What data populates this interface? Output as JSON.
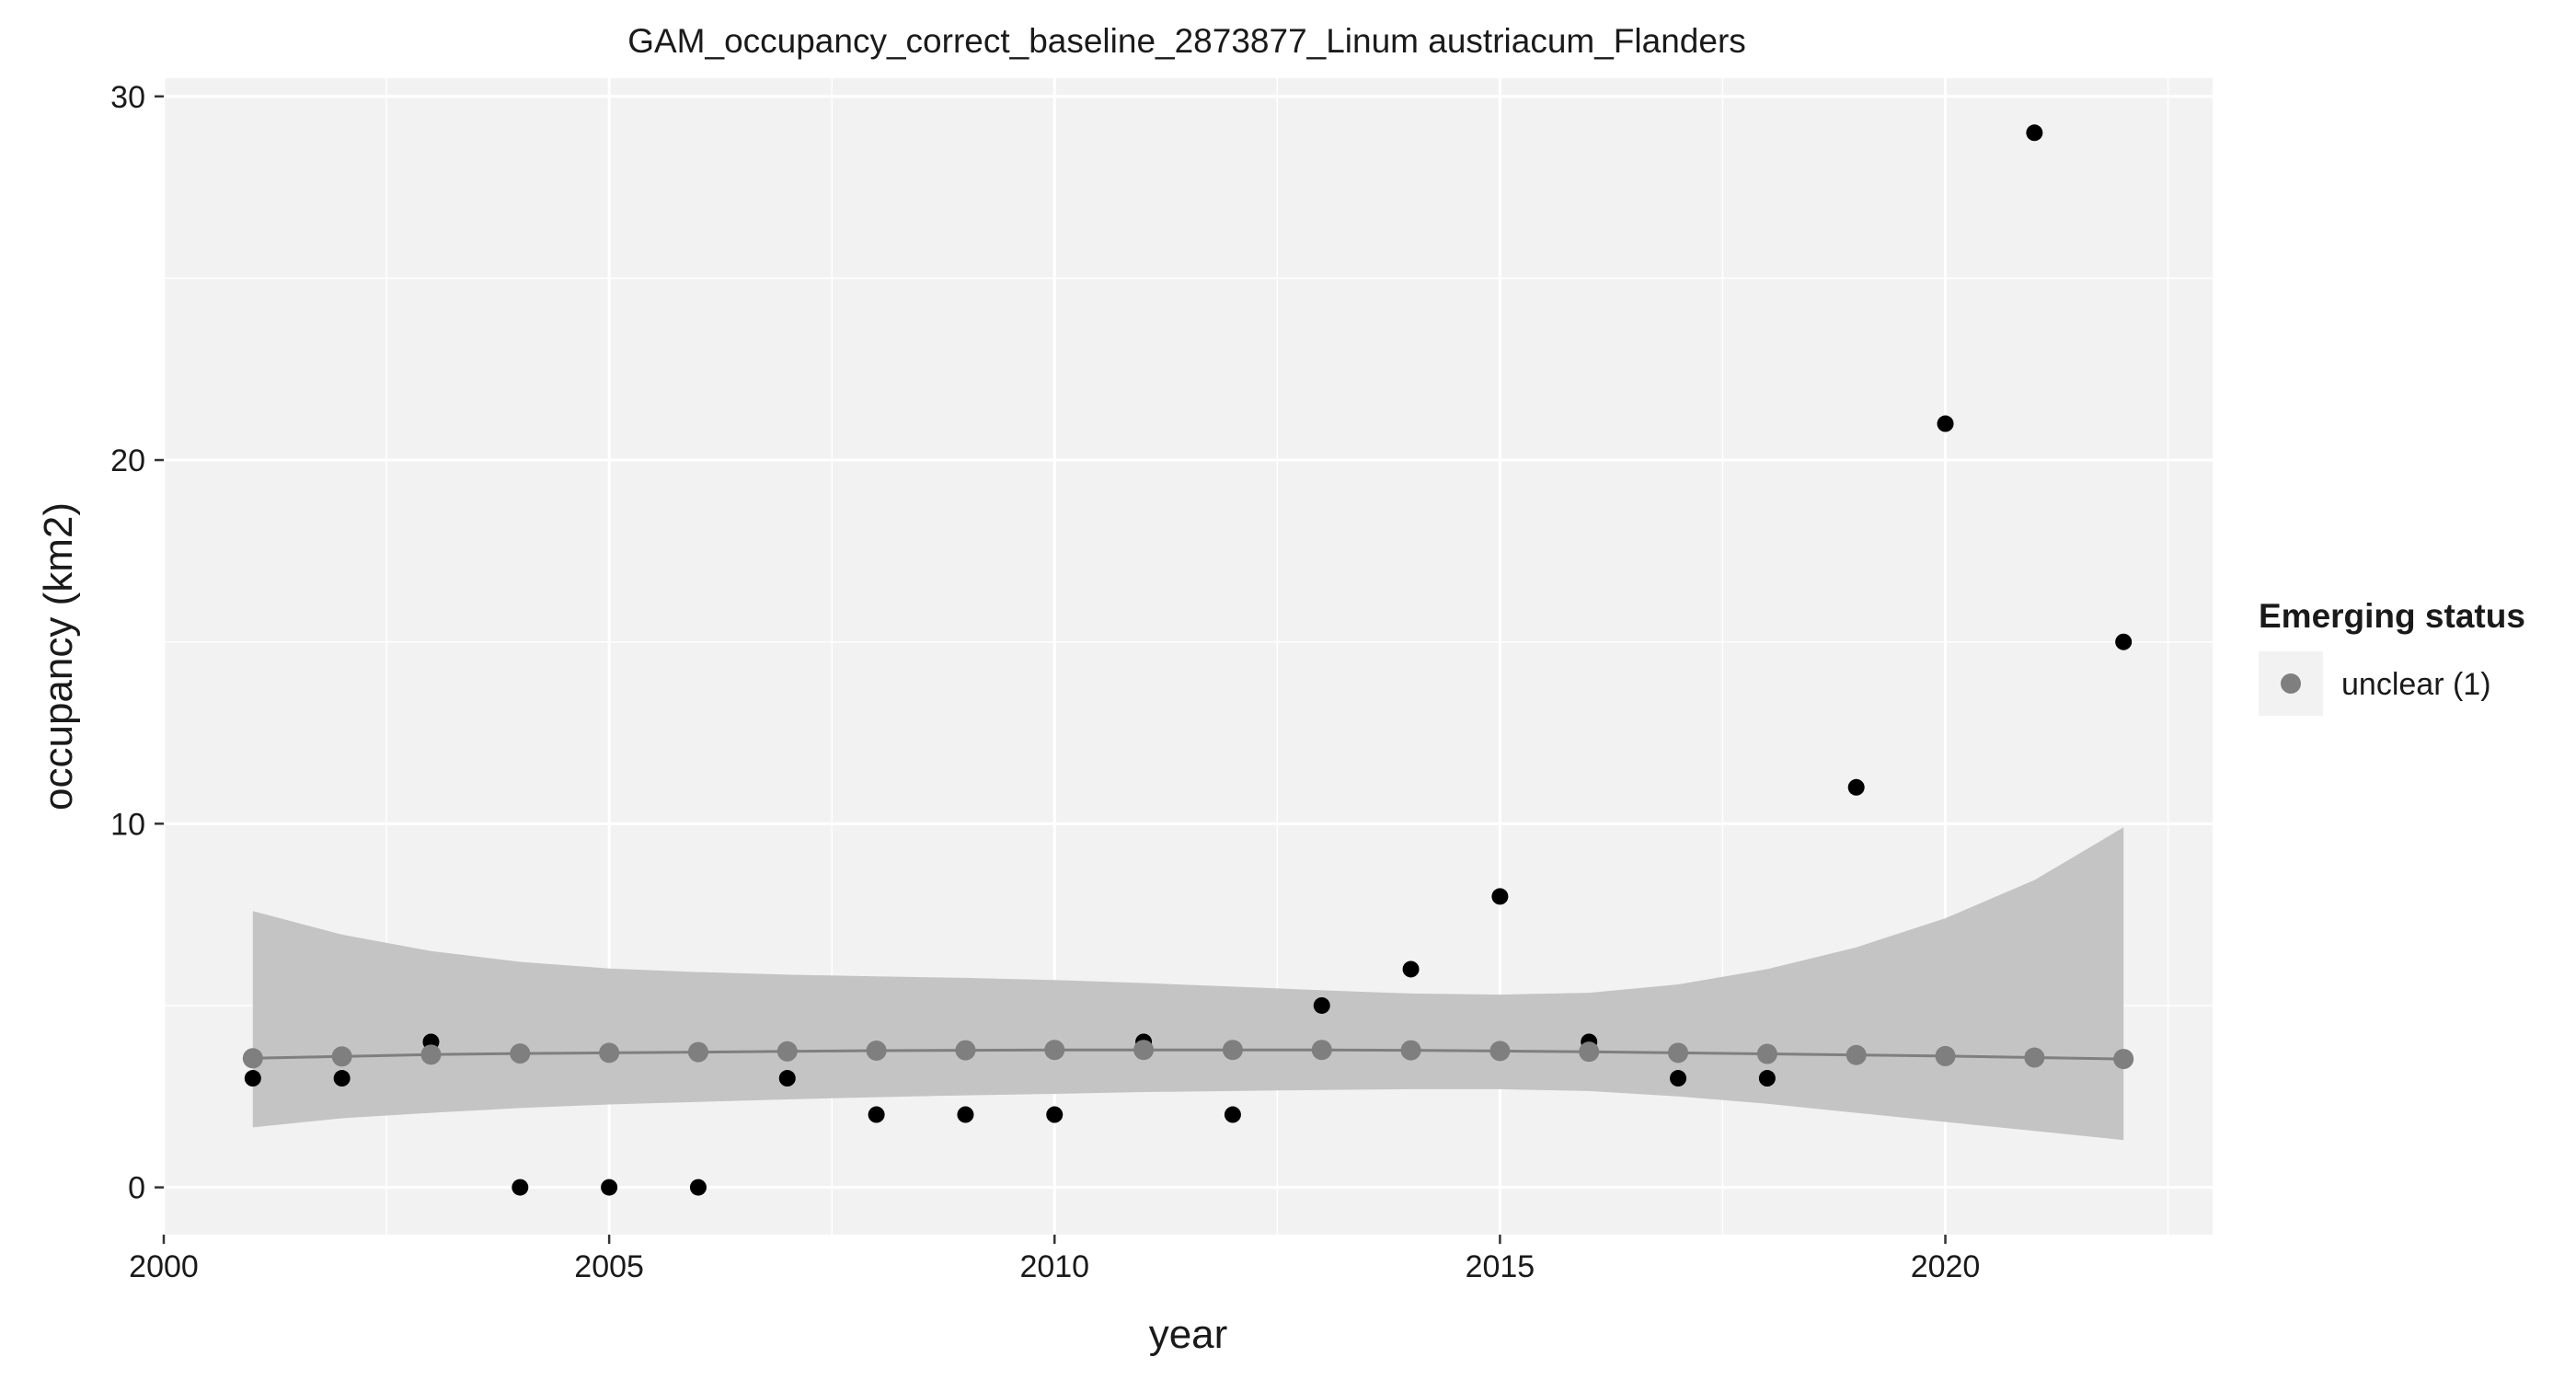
{
  "chart_data": {
    "type": "scatter",
    "title": "GAM_occupancy_correct_baseline_2873877_Linum austriacum_Flanders",
    "xlabel": "year",
    "ylabel": "occupancy (km2)",
    "xlim": [
      2000,
      2023
    ],
    "ylim": [
      -1.3,
      30.5
    ],
    "x_ticks": [
      2000,
      2005,
      2010,
      2015,
      2020
    ],
    "y_ticks": [
      0,
      10,
      20,
      30
    ],
    "grid": true,
    "observed": {
      "x": [
        2001,
        2002,
        2003,
        2004,
        2005,
        2006,
        2007,
        2008,
        2009,
        2010,
        2011,
        2012,
        2013,
        2014,
        2015,
        2016,
        2017,
        2018,
        2019,
        2020,
        2021,
        2022
      ],
      "y": [
        3,
        3,
        4,
        0,
        0,
        0,
        3,
        2,
        2,
        2,
        4,
        2,
        5,
        6,
        8,
        4,
        3,
        3,
        11,
        21,
        29,
        15
      ]
    },
    "fit": {
      "x": [
        2001,
        2002,
        2003,
        2004,
        2005,
        2006,
        2007,
        2008,
        2009,
        2010,
        2011,
        2012,
        2013,
        2014,
        2015,
        2016,
        2017,
        2018,
        2019,
        2020,
        2021,
        2022
      ],
      "y": [
        3.55,
        3.6,
        3.65,
        3.68,
        3.7,
        3.72,
        3.74,
        3.76,
        3.77,
        3.78,
        3.78,
        3.78,
        3.78,
        3.77,
        3.75,
        3.73,
        3.7,
        3.67,
        3.64,
        3.61,
        3.57,
        3.53
      ],
      "lower": [
        1.65,
        1.9,
        2.05,
        2.18,
        2.28,
        2.35,
        2.42,
        2.48,
        2.53,
        2.57,
        2.62,
        2.65,
        2.68,
        2.7,
        2.7,
        2.65,
        2.5,
        2.3,
        2.05,
        1.8,
        1.55,
        1.3
      ],
      "upper": [
        7.6,
        6.95,
        6.5,
        6.2,
        6.02,
        5.92,
        5.85,
        5.8,
        5.76,
        5.7,
        5.62,
        5.52,
        5.42,
        5.33,
        5.3,
        5.35,
        5.58,
        6.0,
        6.6,
        7.4,
        8.45,
        9.9
      ]
    },
    "legend": {
      "position": "right",
      "title": "Emerging status",
      "entries": [
        {
          "label": "unclear (1)",
          "color": "#7f7f7f"
        }
      ]
    },
    "colors": {
      "panel": "#f2f2f2",
      "grid": "#ffffff",
      "ribbon": "#c4c4c4",
      "fit_line": "#7f7f7f",
      "fit_point": "#7f7f7f",
      "observed_point": "#000000"
    }
  }
}
